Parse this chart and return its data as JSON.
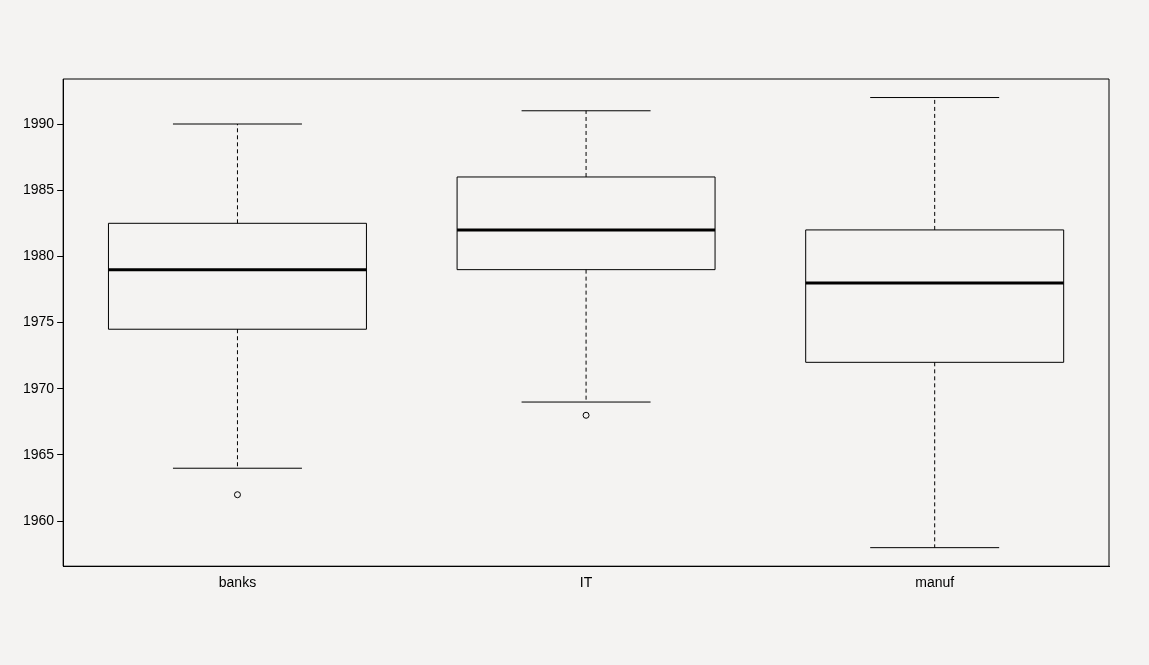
{
  "chart_data": {
    "type": "box",
    "categories": [
      "banks",
      "IT",
      "manuf"
    ],
    "boxes": [
      {
        "low": 1964,
        "q1": 1974.5,
        "median": 1979,
        "q3": 1982.5,
        "high": 1990,
        "outliers": [
          1962
        ]
      },
      {
        "low": 1969,
        "q1": 1979,
        "median": 1982,
        "q3": 1986,
        "high": 1991,
        "outliers": [
          1968
        ]
      },
      {
        "low": 1958,
        "q1": 1972,
        "median": 1978,
        "q3": 1982,
        "high": 1992
      }
    ],
    "color": "#000000",
    "ylim": [
      1956.6,
      1993.4
    ],
    "yticks": [
      1960,
      1965,
      1970,
      1975,
      1980,
      1985,
      1990
    ],
    "grid": false,
    "legend": false
  }
}
